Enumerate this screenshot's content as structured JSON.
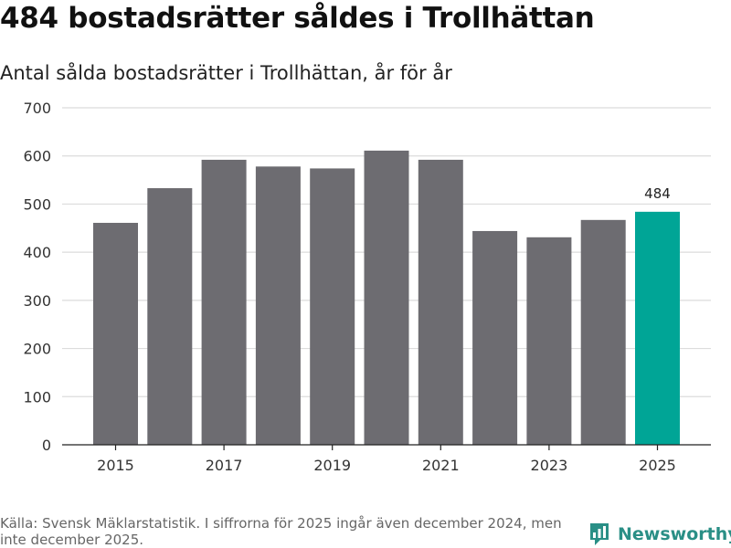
{
  "header": {
    "title": "484 bostadsrätter såldes i Trollhättan",
    "subtitle": "Antal sålda bostadsrätter i Trollhättan, år för år"
  },
  "footer": {
    "source": "Källa: Svensk Mäklarstatistik. I siffrorna för 2025 ingår även december 2024, men inte december 2025.",
    "brand": "Newsworthy",
    "brand_color": "#2a8f86"
  },
  "chart_data": {
    "type": "bar",
    "title": "Antal sålda bostadsrätter i Trollhättan, år för år",
    "xlabel": "",
    "ylabel": "",
    "categories": [
      "2015",
      "2016",
      "2017",
      "2018",
      "2019",
      "2020",
      "2021",
      "2022",
      "2023",
      "2024",
      "2025"
    ],
    "values": [
      461,
      533,
      592,
      578,
      574,
      611,
      592,
      444,
      431,
      467,
      484
    ],
    "x_tick_labels": [
      "2015",
      "",
      "2017",
      "",
      "2019",
      "",
      "2021",
      "",
      "2023",
      "",
      "2025"
    ],
    "y_ticks": [
      0,
      100,
      200,
      300,
      400,
      500,
      600,
      700
    ],
    "ylim": [
      0,
      700
    ],
    "grid": true,
    "bar_color": "#6d6c71",
    "highlight_index": 10,
    "highlight_color": "#00a596",
    "highlight_label": "484"
  }
}
